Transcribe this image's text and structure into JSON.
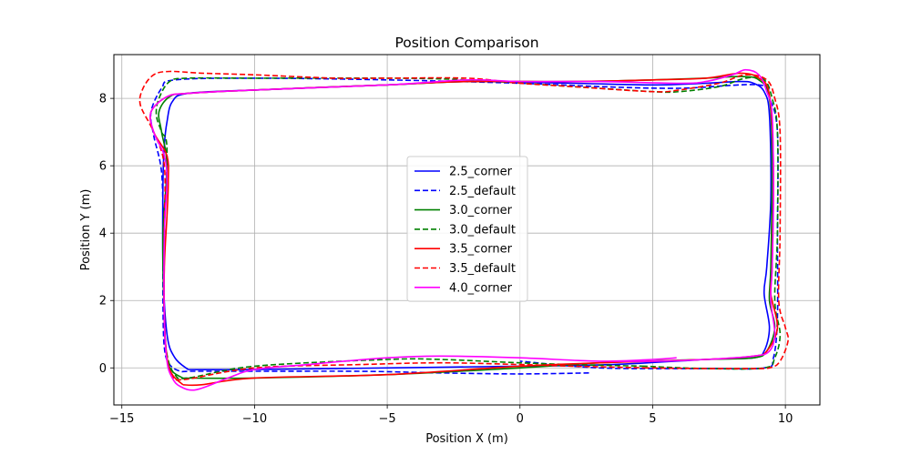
{
  "chart_data": {
    "type": "line",
    "title": "Position Comparison",
    "xlabel": "Position X (m)",
    "ylabel": "Position Y (m)",
    "xlim": [
      -15.3,
      11.3
    ],
    "ylim": [
      -1.1,
      9.3
    ],
    "xticks": [
      -15,
      -10,
      -5,
      0,
      5,
      10
    ],
    "yticks": [
      0,
      2,
      4,
      6,
      8
    ],
    "xtick_labels": [
      "−15",
      "−10",
      "−5",
      "0",
      "5",
      "10"
    ],
    "ytick_labels": [
      "0",
      "2",
      "4",
      "6",
      "8"
    ],
    "grid": true,
    "legend_position": "center",
    "series": [
      {
        "name": "2.5_corner",
        "color": "#0000ff",
        "dash": "solid",
        "points": [
          [
            -12.5,
            -0.05
          ],
          [
            -13.0,
            0.3
          ],
          [
            -13.3,
            1.0
          ],
          [
            -13.45,
            3.0
          ],
          [
            -13.45,
            5.5
          ],
          [
            -13.4,
            6.6
          ],
          [
            -13.3,
            7.3
          ],
          [
            -13.1,
            7.9
          ],
          [
            -12.5,
            8.15
          ],
          [
            -10,
            8.25
          ],
          [
            -5,
            8.4
          ],
          [
            -2,
            8.5
          ],
          [
            2,
            8.45
          ],
          [
            5,
            8.4
          ],
          [
            7,
            8.45
          ],
          [
            8.3,
            8.5
          ],
          [
            8.8,
            8.45
          ],
          [
            9.2,
            8.2
          ],
          [
            9.4,
            7.5
          ],
          [
            9.45,
            5.0
          ],
          [
            9.3,
            3.0
          ],
          [
            9.2,
            2.2
          ],
          [
            9.4,
            1.2
          ],
          [
            9.2,
            0.5
          ],
          [
            8.8,
            0.3
          ],
          [
            7,
            0.25
          ],
          [
            3.5,
            0.1
          ],
          [
            0,
            0.05
          ],
          [
            -5,
            0.0
          ],
          [
            -10,
            -0.05
          ],
          [
            -12.5,
            -0.05
          ]
        ]
      },
      {
        "name": "2.5_default",
        "color": "#0000ff",
        "dash": "dashed",
        "points": [
          [
            2.6,
            -0.15
          ],
          [
            0,
            -0.18
          ],
          [
            -3,
            -0.15
          ],
          [
            -6,
            -0.1
          ],
          [
            -10,
            -0.1
          ],
          [
            -12.4,
            -0.1
          ],
          [
            -12.8,
            -0.1
          ],
          [
            -13.2,
            0.1
          ],
          [
            -13.4,
            0.6
          ],
          [
            -13.45,
            2
          ],
          [
            -13.45,
            4
          ],
          [
            -13.5,
            5.8
          ],
          [
            -13.8,
            6.9
          ],
          [
            -13.9,
            7.6
          ],
          [
            -13.5,
            8.3
          ],
          [
            -13,
            8.55
          ],
          [
            -10,
            8.6
          ],
          [
            -5,
            8.55
          ],
          [
            0,
            8.45
          ],
          [
            3,
            8.35
          ],
          [
            6,
            8.3
          ],
          [
            9,
            8.4
          ],
          [
            9.4,
            8.0
          ],
          [
            9.7,
            7.0
          ],
          [
            9.7,
            4.0
          ],
          [
            9.7,
            1.5
          ],
          [
            9.55,
            0.3
          ],
          [
            9.2,
            0.0
          ],
          [
            7,
            -0.02
          ],
          [
            3,
            0.0
          ],
          [
            0,
            0.2
          ]
        ]
      },
      {
        "name": "3.0_corner",
        "color": "#008000",
        "dash": "solid",
        "points": [
          [
            -12.7,
            -0.3
          ],
          [
            -13.1,
            -0.1
          ],
          [
            -13.3,
            0.3
          ],
          [
            -13.4,
            1.5
          ],
          [
            -13.45,
            4.0
          ],
          [
            -13.3,
            6.0
          ],
          [
            -13.5,
            7.0
          ],
          [
            -13.6,
            7.6
          ],
          [
            -13.2,
            8.05
          ],
          [
            -12.5,
            8.15
          ],
          [
            -10,
            8.25
          ],
          [
            -5,
            8.4
          ],
          [
            -2,
            8.5
          ],
          [
            2,
            8.5
          ],
          [
            5,
            8.55
          ],
          [
            7,
            8.6
          ],
          [
            8.3,
            8.65
          ],
          [
            9.0,
            8.55
          ],
          [
            9.4,
            8.0
          ],
          [
            9.5,
            6.0
          ],
          [
            9.45,
            3.0
          ],
          [
            9.4,
            2.0
          ],
          [
            9.6,
            1.2
          ],
          [
            9.3,
            0.5
          ],
          [
            8.8,
            0.3
          ],
          [
            7,
            0.25
          ],
          [
            3,
            0.15
          ],
          [
            0,
            0.0
          ],
          [
            -5,
            -0.2
          ],
          [
            -10,
            -0.3
          ],
          [
            -12.7,
            -0.3
          ]
        ]
      },
      {
        "name": "3.0_default",
        "color": "#008000",
        "dash": "dashed",
        "points": [
          [
            4.7,
            0.05
          ],
          [
            2,
            0.1
          ],
          [
            0,
            0.15
          ],
          [
            -3,
            0.25
          ],
          [
            -5,
            0.25
          ],
          [
            -10,
            0.05
          ],
          [
            -12.5,
            -0.3
          ],
          [
            -13.0,
            -0.2
          ],
          [
            -13.3,
            0.4
          ],
          [
            -13.4,
            1.5
          ],
          [
            -13.4,
            4.0
          ],
          [
            -13.3,
            6.5
          ],
          [
            -13.5,
            7.0
          ],
          [
            -13.7,
            7.5
          ],
          [
            -13.6,
            8.0
          ],
          [
            -13.2,
            8.5
          ],
          [
            -12.5,
            8.6
          ],
          [
            -10,
            8.6
          ],
          [
            -5,
            8.6
          ],
          [
            -2,
            8.55
          ],
          [
            2,
            8.35
          ],
          [
            5,
            8.2
          ],
          [
            6,
            8.2
          ],
          [
            7.5,
            8.35
          ],
          [
            8.5,
            8.6
          ],
          [
            9.2,
            8.55
          ],
          [
            9.5,
            8.0
          ],
          [
            9.7,
            7.0
          ],
          [
            9.7,
            4.0
          ],
          [
            9.6,
            2.0
          ],
          [
            9.8,
            1.0
          ],
          [
            9.6,
            0.3
          ],
          [
            9.2,
            0.0
          ],
          [
            7,
            -0.02
          ],
          [
            4.7,
            0.05
          ]
        ]
      },
      {
        "name": "3.5_corner",
        "color": "#ff0000",
        "dash": "solid",
        "points": [
          [
            -12.7,
            -0.5
          ],
          [
            -13.1,
            -0.2
          ],
          [
            -13.3,
            0.3
          ],
          [
            -13.4,
            1.5
          ],
          [
            -13.4,
            3.0
          ],
          [
            -13.3,
            4.5
          ],
          [
            -13.25,
            5.5
          ],
          [
            -13.3,
            6.3
          ],
          [
            -13.8,
            7.0
          ],
          [
            -13.9,
            7.6
          ],
          [
            -13.3,
            8.05
          ],
          [
            -12.5,
            8.15
          ],
          [
            -10,
            8.25
          ],
          [
            -5,
            8.4
          ],
          [
            -2,
            8.5
          ],
          [
            2,
            8.5
          ],
          [
            5,
            8.55
          ],
          [
            7,
            8.6
          ],
          [
            8.3,
            8.75
          ],
          [
            9.0,
            8.6
          ],
          [
            9.4,
            8.1
          ],
          [
            9.55,
            6.0
          ],
          [
            9.5,
            3.0
          ],
          [
            9.45,
            2.2
          ],
          [
            9.7,
            1.2
          ],
          [
            9.3,
            0.5
          ],
          [
            8.8,
            0.35
          ],
          [
            7,
            0.25
          ],
          [
            3,
            0.15
          ],
          [
            0,
            0.05
          ],
          [
            -5,
            -0.2
          ],
          [
            -10,
            -0.3
          ],
          [
            -12.0,
            -0.5
          ],
          [
            -12.7,
            -0.5
          ]
        ]
      },
      {
        "name": "3.5_default",
        "color": "#ff0000",
        "dash": "dashed",
        "points": [
          [
            4.8,
            0.0
          ],
          [
            2,
            0.05
          ],
          [
            0,
            0.1
          ],
          [
            -3,
            0.15
          ],
          [
            -6,
            0.1
          ],
          [
            -10,
            0.0
          ],
          [
            -12.7,
            -0.35
          ],
          [
            -13.1,
            -0.2
          ],
          [
            -13.3,
            0.3
          ],
          [
            -13.4,
            1.5
          ],
          [
            -13.4,
            4.0
          ],
          [
            -13.4,
            6.0
          ],
          [
            -13.8,
            7.0
          ],
          [
            -14.3,
            7.8
          ],
          [
            -14.2,
            8.3
          ],
          [
            -13.8,
            8.7
          ],
          [
            -13.2,
            8.8
          ],
          [
            -12,
            8.75
          ],
          [
            -10,
            8.7
          ],
          [
            -7,
            8.6
          ],
          [
            -5,
            8.6
          ],
          [
            -2,
            8.6
          ],
          [
            0,
            8.45
          ],
          [
            2,
            8.35
          ],
          [
            5,
            8.2
          ],
          [
            6,
            8.25
          ],
          [
            7.5,
            8.45
          ],
          [
            8.5,
            8.7
          ],
          [
            9.3,
            8.55
          ],
          [
            9.6,
            8.0
          ],
          [
            9.8,
            7.0
          ],
          [
            9.8,
            4.0
          ],
          [
            9.75,
            2.0
          ],
          [
            10.0,
            1.2
          ],
          [
            10.1,
            0.8
          ],
          [
            9.8,
            0.2
          ],
          [
            9.4,
            0.0
          ],
          [
            8.5,
            -0.02
          ],
          [
            7,
            -0.02
          ],
          [
            4.8,
            0.0
          ]
        ]
      },
      {
        "name": "4.0_corner",
        "color": "#ff00ff",
        "dash": "solid",
        "points": [
          [
            5.9,
            0.3
          ],
          [
            5,
            0.25
          ],
          [
            3,
            0.2
          ],
          [
            0,
            0.3
          ],
          [
            -3,
            0.35
          ],
          [
            -5,
            0.3
          ],
          [
            -8,
            0.1
          ],
          [
            -10,
            -0.05
          ],
          [
            -11,
            -0.3
          ],
          [
            -12.2,
            -0.65
          ],
          [
            -12.8,
            -0.55
          ],
          [
            -13.1,
            -0.3
          ],
          [
            -13.3,
            0.2
          ],
          [
            -13.4,
            1.5
          ],
          [
            -13.4,
            4.0
          ],
          [
            -13.3,
            5.5
          ],
          [
            -13.4,
            6.3
          ],
          [
            -13.8,
            7.0
          ],
          [
            -13.9,
            7.6
          ],
          [
            -13.3,
            8.05
          ],
          [
            -12.5,
            8.15
          ],
          [
            -10,
            8.25
          ],
          [
            -5,
            8.4
          ],
          [
            -2,
            8.55
          ],
          [
            0,
            8.5
          ],
          [
            3,
            8.5
          ],
          [
            6,
            8.45
          ],
          [
            7,
            8.5
          ],
          [
            8,
            8.7
          ],
          [
            8.5,
            8.85
          ],
          [
            9.0,
            8.7
          ],
          [
            9.3,
            8.2
          ],
          [
            9.5,
            7.5
          ],
          [
            9.55,
            5.0
          ],
          [
            9.5,
            3.0
          ],
          [
            9.45,
            2.0
          ],
          [
            9.6,
            1.0
          ],
          [
            9.4,
            0.5
          ],
          [
            8.8,
            0.35
          ],
          [
            7,
            0.25
          ],
          [
            5,
            0.2
          ],
          [
            3,
            0.2
          ]
        ]
      }
    ]
  }
}
